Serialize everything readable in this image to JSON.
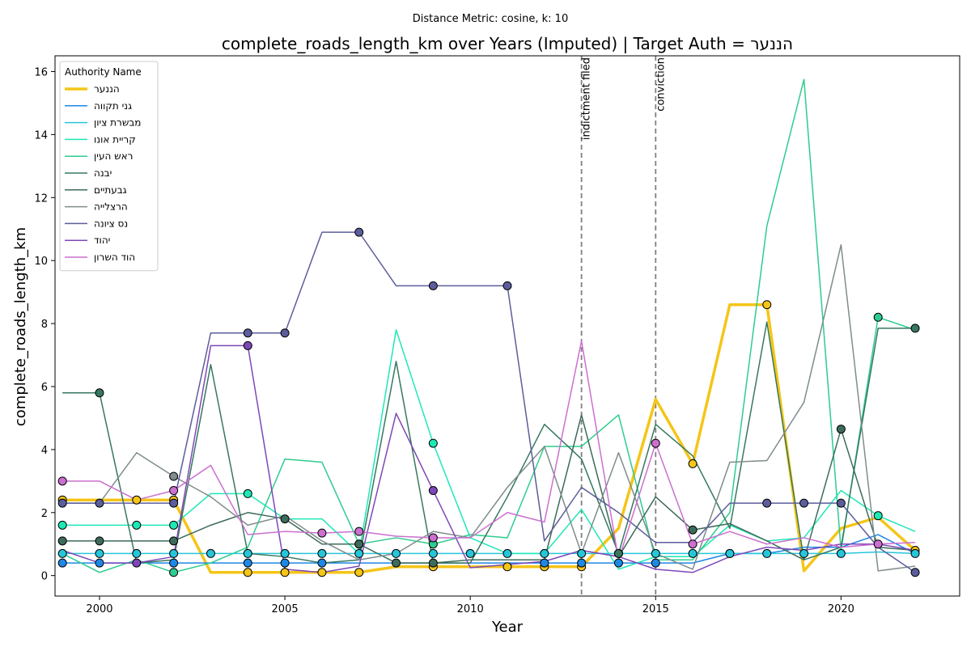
{
  "chart_data": {
    "type": "line",
    "suptitle": "Distance Metric: cosine, k: 10",
    "title": "complete_roads_length_km over Years (Imputed) | Target Auth = הננער",
    "xlabel": "Year",
    "ylabel": "complete_roads_length_km",
    "xlim": [
      1998.8,
      2023.2
    ],
    "ylim": [
      -0.65,
      16.5
    ],
    "xticks": [
      2000,
      2005,
      2010,
      2015,
      2020
    ],
    "yticks": [
      0,
      2,
      4,
      6,
      8,
      10,
      12,
      14,
      16
    ],
    "grid": false,
    "legend": {
      "title": "Authority Name",
      "placement": "top-left"
    },
    "events": [
      {
        "x": 2013,
        "label": "indictment filed"
      },
      {
        "x": 2015,
        "label": "conviction"
      }
    ],
    "x": [
      1999,
      2000,
      2001,
      2002,
      2003,
      2004,
      2005,
      2006,
      2007,
      2008,
      2009,
      2010,
      2011,
      2012,
      2013,
      2014,
      2015,
      2016,
      2017,
      2018,
      2019,
      2020,
      2021,
      2022
    ],
    "series": [
      {
        "name": "הננער",
        "color": "#f5c518",
        "width": 3.5,
        "values": [
          2.4,
          2.4,
          2.4,
          2.4,
          0.1,
          0.1,
          0.1,
          0.1,
          0.1,
          0.28,
          0.28,
          0.28,
          0.28,
          0.28,
          0.28,
          1.5,
          5.6,
          3.55,
          8.6,
          8.6,
          0.15,
          1.5,
          1.85,
          0.8
        ],
        "markers": [
          true,
          false,
          true,
          true,
          false,
          true,
          true,
          true,
          true,
          false,
          true,
          false,
          true,
          true,
          true,
          false,
          false,
          true,
          false,
          true,
          false,
          false,
          false,
          true
        ]
      },
      {
        "name": "גני תקווה",
        "color": "#1e88e5",
        "width": 1.5,
        "values": [
          0.4,
          0.4,
          0.4,
          0.4,
          0.4,
          0.4,
          0.4,
          0.4,
          0.4,
          0.4,
          0.4,
          0.4,
          0.4,
          0.4,
          0.4,
          0.4,
          0.4,
          0.4,
          0.7,
          0.7,
          0.9,
          0.9,
          1.3,
          0.7
        ],
        "markers": [
          true,
          true,
          false,
          true,
          false,
          true,
          true,
          true,
          false,
          false,
          false,
          false,
          false,
          true,
          true,
          true,
          true,
          false,
          true,
          false,
          false,
          false,
          false,
          false
        ]
      },
      {
        "name": "מבשרת ציון",
        "color": "#26c6da",
        "width": 1.5,
        "values": [
          0.7,
          0.7,
          0.7,
          0.7,
          0.7,
          0.7,
          0.7,
          0.7,
          0.7,
          0.7,
          0.7,
          0.7,
          0.7,
          0.7,
          0.7,
          0.7,
          0.7,
          0.7,
          0.7,
          0.7,
          0.7,
          0.7,
          0.75,
          0.7
        ],
        "markers": [
          true,
          true,
          true,
          true,
          true,
          true,
          true,
          true,
          true,
          true,
          true,
          true,
          true,
          true,
          true,
          true,
          true,
          true,
          true,
          true,
          true,
          true,
          false,
          true
        ]
      },
      {
        "name": "קריית אונו",
        "color": "#1de9b6",
        "width": 1.5,
        "values": [
          1.6,
          1.6,
          1.6,
          1.6,
          2.6,
          2.6,
          1.8,
          1.8,
          0.7,
          7.8,
          4.2,
          1.2,
          0.7,
          0.7,
          2.1,
          0.2,
          0.6,
          0.6,
          1.6,
          1.1,
          1.2,
          2.7,
          1.9,
          1.4
        ],
        "markers": [
          true,
          false,
          true,
          true,
          false,
          true,
          false,
          false,
          false,
          false,
          true,
          false,
          false,
          false,
          false,
          false,
          false,
          false,
          false,
          false,
          false,
          false,
          true,
          false
        ]
      },
      {
        "name": "ראש העין",
        "color": "#2ecc8f",
        "width": 1.5,
        "values": [
          0.7,
          0.1,
          0.5,
          0.1,
          0.4,
          0.9,
          3.7,
          3.6,
          1.0,
          1.2,
          1.0,
          1.3,
          1.2,
          4.1,
          4.1,
          5.1,
          0.5,
          0.5,
          2.0,
          11.1,
          15.75,
          0.8,
          8.2,
          7.8
        ],
        "markers": [
          false,
          false,
          false,
          true,
          false,
          false,
          false,
          false,
          true,
          false,
          true,
          false,
          false,
          false,
          false,
          false,
          false,
          false,
          false,
          false,
          false,
          false,
          true,
          false
        ]
      },
      {
        "name": "יבנה",
        "color": "#37785f",
        "width": 1.5,
        "values": [
          5.8,
          5.8,
          0.4,
          0.5,
          6.7,
          0.7,
          0.6,
          0.4,
          0.5,
          6.8,
          0.4,
          0.4,
          2.5,
          4.8,
          3.7,
          0.7,
          4.8,
          3.8,
          1.5,
          8.05,
          0.5,
          0.9,
          7.85,
          7.85
        ],
        "markers": [
          false,
          true,
          false,
          false,
          false,
          false,
          false,
          false,
          false,
          false,
          false,
          false,
          false,
          false,
          false,
          true,
          false,
          false,
          false,
          false,
          false,
          false,
          false,
          true
        ]
      },
      {
        "name": "גבעתיים",
        "color": "#3d6b5a",
        "width": 1.5,
        "values": [
          1.1,
          1.1,
          1.1,
          1.1,
          1.6,
          2.0,
          1.8,
          1.0,
          1.0,
          0.4,
          0.4,
          0.5,
          0.5,
          0.5,
          5.1,
          0.6,
          2.5,
          1.45,
          1.65,
          1.1,
          0.5,
          4.65,
          0.9,
          0.8
        ],
        "markers": [
          true,
          true,
          false,
          true,
          false,
          false,
          true,
          false,
          true,
          true,
          true,
          false,
          false,
          false,
          false,
          false,
          false,
          true,
          false,
          false,
          false,
          true,
          false,
          false
        ]
      },
      {
        "name": "הרצלייה",
        "color": "#7f8c8d",
        "width": 1.5,
        "values": [
          2.3,
          2.3,
          3.9,
          3.15,
          2.5,
          1.6,
          1.9,
          1.1,
          0.5,
          0.7,
          1.4,
          1.2,
          2.8,
          4.1,
          0.7,
          3.9,
          0.7,
          0.2,
          3.6,
          3.65,
          5.5,
          10.5,
          0.15,
          0.3
        ],
        "markers": [
          false,
          false,
          false,
          true,
          false,
          false,
          false,
          false,
          false,
          false,
          false,
          false,
          false,
          false,
          false,
          false,
          false,
          false,
          false,
          false,
          false,
          false,
          false,
          false
        ]
      },
      {
        "name": "נס ציונה",
        "color": "#5c5d9c",
        "width": 1.5,
        "values": [
          2.3,
          2.3,
          2.3,
          2.3,
          7.7,
          7.7,
          7.7,
          10.9,
          10.9,
          9.2,
          9.2,
          9.2,
          9.2,
          1.1,
          2.8,
          2.0,
          1.05,
          1.05,
          2.3,
          2.3,
          2.3,
          2.3,
          0.9,
          0.1
        ],
        "markers": [
          true,
          true,
          false,
          true,
          false,
          true,
          true,
          false,
          true,
          false,
          true,
          false,
          true,
          false,
          false,
          false,
          false,
          false,
          false,
          true,
          true,
          true,
          false,
          true
        ]
      },
      {
        "name": "יהוד",
        "color": "#7e47b8",
        "width": 1.5,
        "values": [
          0.8,
          0.4,
          0.4,
          0.6,
          7.3,
          7.3,
          0.2,
          0.1,
          0.3,
          5.15,
          2.7,
          0.25,
          0.35,
          0.45,
          0.8,
          0.6,
          0.2,
          0.1,
          0.6,
          0.9,
          0.8,
          1.0,
          1.0,
          0.8
        ],
        "markers": [
          false,
          false,
          true,
          false,
          false,
          true,
          false,
          false,
          false,
          false,
          true,
          false,
          false,
          false,
          false,
          false,
          false,
          false,
          false,
          false,
          false,
          false,
          false,
          false
        ]
      },
      {
        "name": "הוד השרון",
        "color": "#cc6fd1",
        "width": 1.5,
        "values": [
          3.0,
          3.0,
          2.4,
          2.7,
          3.5,
          1.3,
          1.4,
          1.35,
          1.4,
          1.25,
          1.2,
          1.2,
          2.0,
          1.7,
          7.45,
          0.5,
          4.2,
          1.0,
          1.4,
          1.0,
          1.2,
          0.9,
          1.0,
          1.05
        ],
        "markers": [
          true,
          false,
          false,
          true,
          false,
          false,
          false,
          true,
          true,
          false,
          true,
          false,
          false,
          false,
          false,
          false,
          true,
          true,
          false,
          false,
          false,
          false,
          true,
          false
        ]
      }
    ]
  }
}
